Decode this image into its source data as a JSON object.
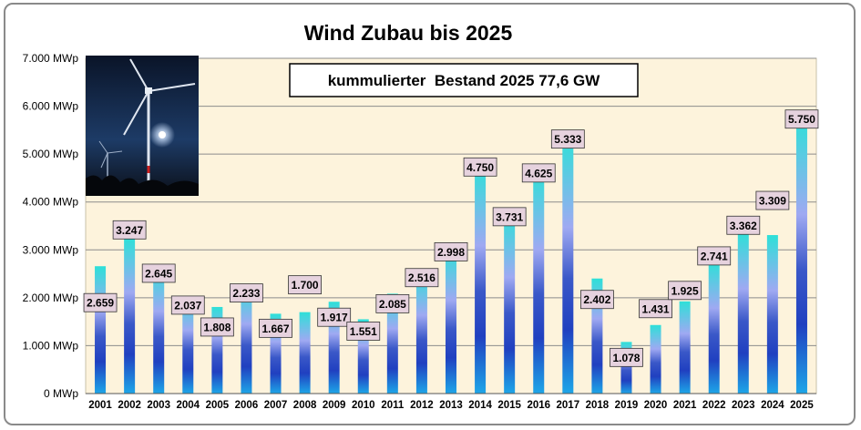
{
  "chart_data": {
    "type": "bar",
    "title": "Wind Zubau bis 2025",
    "subtitle": "kummulierter  Bestand 2025 77,6 GW",
    "ylim": [
      0,
      7000
    ],
    "yticks": [
      "0 MWp",
      "1.000 MWp",
      "2.000 MWp",
      "3.000 MWp",
      "4.000 MWp",
      "5.000 MWp",
      "6.000 MWp",
      "7.000 MWp"
    ],
    "grid": true,
    "legend": "none",
    "categories": [
      "2001",
      "2002",
      "2003",
      "2004",
      "2005",
      "2006",
      "2007",
      "2008",
      "2009",
      "2010",
      "2011",
      "2012",
      "2013",
      "2014",
      "2015",
      "2016",
      "2017",
      "2018",
      "2019",
      "2020",
      "2021",
      "2022",
      "2023",
      "2024",
      "2025"
    ],
    "values": [
      2659,
      3247,
      2645,
      2037,
      1808,
      2233,
      1667,
      1700,
      1917,
      1551,
      2085,
      2516,
      2998,
      4750,
      3731,
      4625,
      5333,
      2402,
      1078,
      1431,
      1925,
      2741,
      3362,
      3309,
      5750
    ],
    "data_labels": [
      "2.659",
      "3.247",
      "2.645",
      "2.037",
      "1.808",
      "2.233",
      "1.667",
      "1.700",
      "1.917",
      "1.551",
      "2.085",
      "2.516",
      "2.998",
      "4.750",
      "3.731",
      "4.625",
      "5.333",
      "2.402",
      "1.078",
      "1.431",
      "1.925",
      "2.741",
      "3.362",
      "3.309",
      "5.750"
    ]
  },
  "colors": {
    "plot_background": "#fdf3dc",
    "bar_top": "#2ee0d8",
    "bar_mid": "#9fa9f2",
    "bar_dark": "#2040c0",
    "bar_bottom": "#1ea6e8",
    "label_box": "#e6d2de"
  },
  "photo": {
    "icon": "wind-turbine-night-photo"
  }
}
